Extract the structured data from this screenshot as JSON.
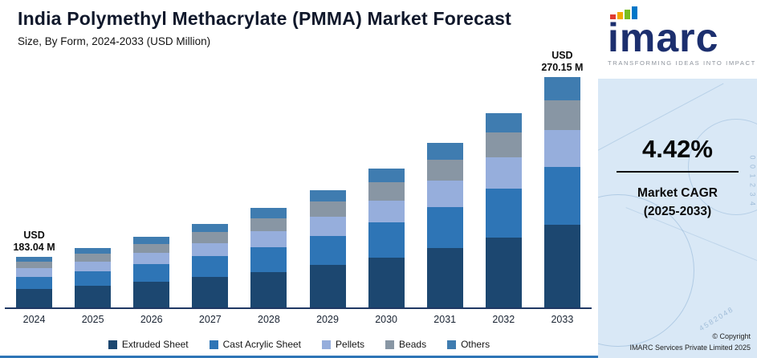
{
  "chart_data": {
    "type": "bar",
    "stacked": true,
    "unit": "USD Million",
    "title": "India Polymethyl Methacrylate (PMMA) Market Forecast",
    "subtitle": "Size, By Form, 2024-2033 (USD Million)",
    "categories": [
      "2024",
      "2025",
      "2026",
      "2027",
      "2028",
      "2029",
      "2030",
      "2031",
      "2032",
      "2033"
    ],
    "totals": [
      183.04,
      191.13,
      199.58,
      208.4,
      217.61,
      227.23,
      237.27,
      247.76,
      258.71,
      270.15
    ],
    "series": [
      {
        "name": "Extruded Sheet",
        "color": "#1c4770",
        "values": [
          65.89,
          68.81,
          71.85,
          75.02,
          78.34,
          81.8,
          85.42,
          89.19,
          93.14,
          97.25
        ]
      },
      {
        "name": "Cast Acrylic Sheet",
        "color": "#2e75b6",
        "values": [
          45.76,
          47.78,
          49.9,
          52.1,
          54.4,
          56.81,
          59.32,
          61.94,
          64.68,
          67.54
        ]
      },
      {
        "name": "Pellets",
        "color": "#96aedc",
        "values": [
          29.29,
          30.58,
          31.93,
          33.34,
          34.82,
          36.36,
          37.96,
          39.64,
          41.39,
          43.22
        ]
      },
      {
        "name": "Beads",
        "color": "#8896a4",
        "values": [
          23.8,
          24.85,
          25.95,
          27.09,
          28.29,
          29.54,
          30.85,
          32.21,
          33.63,
          35.12
        ]
      },
      {
        "name": "Others",
        "color": "#3f7cb0",
        "values": [
          18.3,
          19.11,
          19.95,
          20.85,
          21.76,
          22.72,
          23.72,
          24.78,
          25.87,
          27.02
        ]
      }
    ],
    "annotations": [
      {
        "category": "2024",
        "lines": [
          "USD",
          "183.04 M"
        ]
      },
      {
        "category": "2033",
        "lines": [
          "USD",
          "270.15 M"
        ]
      }
    ],
    "legend_position": "bottom",
    "grid": false,
    "y_axis_visible": false,
    "baseline_truncated": true
  },
  "sidebar": {
    "logo_text": "imarc",
    "tagline": "TRANSFORMING IDEAS INTO IMPACT",
    "logo_mark_colors": [
      "#e03c31",
      "#f2a900",
      "#78be20",
      "#0077c8"
    ],
    "cagr_value": "4.42%",
    "cagr_label_line1": "Market CAGR",
    "cagr_label_line2": "(2025-2033)",
    "copyright_line1": "© Copyright",
    "copyright_line2": "IMARC Services Private Limited 2025",
    "watermark_1": "0 0 1 2 3 4",
    "watermark_2": "4582048",
    "panel_bg": "#d9e8f6",
    "accent_blue": "#2e75b6"
  }
}
